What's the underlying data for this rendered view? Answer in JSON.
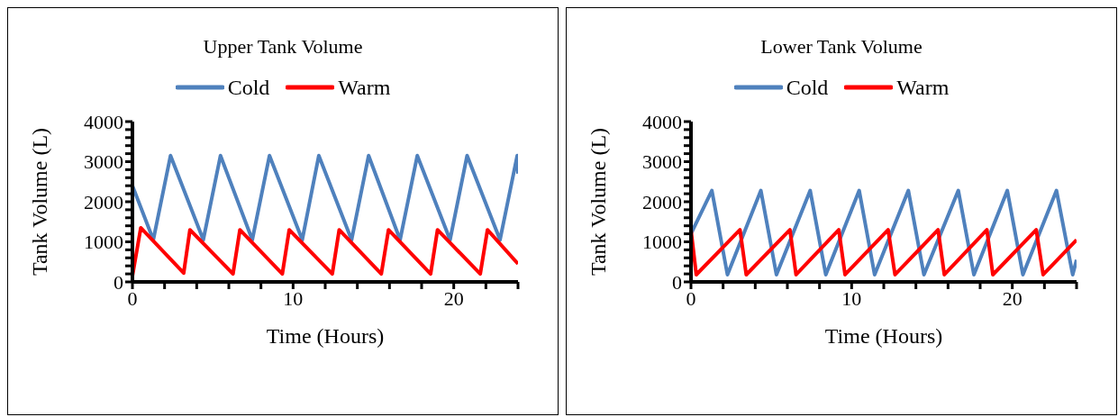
{
  "chart_data": [
    {
      "type": "line",
      "title": "Upper Tank Volume",
      "xlabel": "Time (Hours)",
      "ylabel": "Tank Volume (L)",
      "legend": "top",
      "xlim": [
        0,
        24
      ],
      "ylim": [
        0,
        4000
      ],
      "xticks": [
        0,
        {
          "value": 2,
          "label": null
        },
        {
          "value": 4,
          "label": null
        },
        {
          "value": 6,
          "label": null
        },
        {
          "value": 8,
          "label": null
        },
        10,
        {
          "value": 12,
          "label": null
        },
        {
          "value": 14,
          "label": null
        },
        {
          "value": 16,
          "label": null
        },
        {
          "value": 18,
          "label": null
        },
        20,
        {
          "value": 22,
          "label": null
        },
        {
          "value": 24,
          "label": null
        }
      ],
      "yticks": [
        0,
        {
          "value": 200,
          "label": null
        },
        {
          "value": 400,
          "label": null
        },
        {
          "value": 600,
          "label": null
        },
        {
          "value": 800,
          "label": null
        },
        1000,
        {
          "value": 1200,
          "label": null
        },
        {
          "value": 1400,
          "label": null
        },
        {
          "value": 1600,
          "label": null
        },
        {
          "value": 1800,
          "label": null
        },
        2000,
        {
          "value": 2200,
          "label": null
        },
        {
          "value": 2400,
          "label": null
        },
        {
          "value": 2600,
          "label": null
        },
        {
          "value": 2800,
          "label": null
        },
        3000,
        {
          "value": 3200,
          "label": null
        },
        {
          "value": 3400,
          "label": null
        },
        {
          "value": 3600,
          "label": null
        },
        {
          "value": 3800,
          "label": null
        },
        4000
      ],
      "series": [
        {
          "name": "Cold",
          "color": "#4f81bd",
          "x": [
            0,
            1.3,
            2.37,
            4.41,
            5.48,
            7.46,
            8.53,
            10.57,
            11.6,
            13.64,
            14.7,
            16.66,
            17.73,
            19.77,
            20.83,
            22.88,
            23.95,
            24
          ],
          "values": [
            2400,
            1050,
            3150,
            1050,
            3150,
            1050,
            3150,
            1050,
            3150,
            1050,
            3150,
            1050,
            3150,
            1050,
            3150,
            1050,
            3150,
            2700
          ]
        },
        {
          "name": "Warm",
          "color": "#ff0000",
          "x": [
            0,
            0.52,
            3.19,
            3.58,
            6.26,
            6.69,
            9.33,
            9.76,
            12.44,
            12.87,
            15.49,
            15.94,
            18.56,
            18.99,
            21.65,
            22.1,
            24
          ],
          "values": [
            150,
            1350,
            220,
            1300,
            200,
            1300,
            200,
            1300,
            200,
            1300,
            200,
            1300,
            200,
            1300,
            200,
            1300,
            450
          ]
        }
      ]
    },
    {
      "type": "line",
      "title": "Lower Tank Volume",
      "xlabel": "Time (Hours)",
      "ylabel": "Tank Volume (L)",
      "legend": "top",
      "xlim": [
        0,
        24
      ],
      "ylim": [
        0,
        4000
      ],
      "xticks": [
        0,
        {
          "value": 2,
          "label": null
        },
        {
          "value": 4,
          "label": null
        },
        {
          "value": 6,
          "label": null
        },
        {
          "value": 8,
          "label": null
        },
        10,
        {
          "value": 12,
          "label": null
        },
        {
          "value": 14,
          "label": null
        },
        {
          "value": 16,
          "label": null
        },
        {
          "value": 18,
          "label": null
        },
        20,
        {
          "value": 22,
          "label": null
        },
        {
          "value": 24,
          "label": null
        }
      ],
      "yticks": [
        0,
        {
          "value": 200,
          "label": null
        },
        {
          "value": 400,
          "label": null
        },
        {
          "value": 600,
          "label": null
        },
        {
          "value": 800,
          "label": null
        },
        1000,
        {
          "value": 1200,
          "label": null
        },
        {
          "value": 1400,
          "label": null
        },
        {
          "value": 1600,
          "label": null
        },
        {
          "value": 1800,
          "label": null
        },
        2000,
        {
          "value": 2200,
          "label": null
        },
        {
          "value": 2400,
          "label": null
        },
        {
          "value": 2600,
          "label": null
        },
        {
          "value": 2800,
          "label": null
        },
        3000,
        {
          "value": 3200,
          "label": null
        },
        {
          "value": 3400,
          "label": null
        },
        {
          "value": 3600,
          "label": null
        },
        {
          "value": 3800,
          "label": null
        },
        4000
      ],
      "series": [
        {
          "name": "Cold",
          "color": "#4f81bd",
          "x": [
            0,
            1.3,
            2.27,
            4.35,
            5.32,
            7.42,
            8.39,
            10.47,
            11.43,
            13.53,
            14.5,
            16.64,
            17.61,
            19.69,
            20.66,
            22.75,
            23.76,
            24
          ],
          "values": [
            1200,
            2280,
            180,
            2280,
            180,
            2280,
            180,
            2280,
            180,
            2280,
            180,
            2280,
            180,
            2280,
            180,
            2280,
            180,
            550
          ]
        },
        {
          "name": "Warm",
          "color": "#ff0000",
          "x": [
            0,
            0.33,
            3.05,
            3.44,
            6.16,
            6.54,
            9.2,
            9.59,
            12.27,
            12.7,
            15.38,
            15.77,
            18.42,
            18.79,
            21.49,
            21.92,
            24
          ],
          "values": [
            1300,
            180,
            1300,
            180,
            1300,
            180,
            1300,
            180,
            1300,
            180,
            1300,
            180,
            1300,
            180,
            1300,
            180,
            1050
          ]
        }
      ]
    }
  ]
}
